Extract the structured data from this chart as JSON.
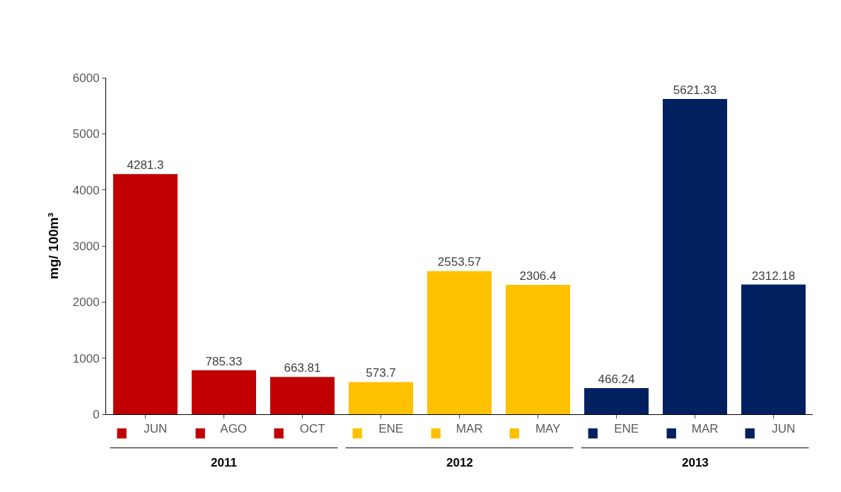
{
  "chart_data": {
    "type": "bar",
    "ylabel": "mg/ 100m³",
    "categories": [
      "JUN",
      "AGO",
      "OCT",
      "ENE",
      "MAR",
      "MAY",
      "ENE",
      "MAR",
      "JUN"
    ],
    "values": [
      4281.3,
      785.33,
      663.81,
      573.7,
      2553.57,
      2306.4,
      466.24,
      5621.33,
      2312.18
    ],
    "colors": [
      "#c00000",
      "#c00000",
      "#c00000",
      "#ffc000",
      "#ffc000",
      "#ffc000",
      "#002060",
      "#002060",
      "#002060"
    ],
    "annotations": [
      "2011",
      "2012",
      "2013"
    ],
    "ylim": [
      0,
      6000
    ],
    "yticks": [
      0,
      1000,
      2000,
      3000,
      4000,
      5000,
      6000
    ],
    "data_labels": true,
    "legend": false
  }
}
